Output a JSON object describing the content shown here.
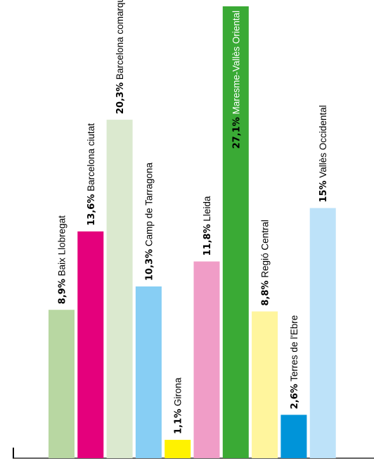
{
  "chart_data": {
    "type": "bar",
    "title": "",
    "xlabel": "",
    "ylabel": "",
    "ylim": [
      0,
      27.1
    ],
    "grid": false,
    "legend": "none",
    "label_orientation": "vertical",
    "categories": [
      "Baix Llobregat",
      "Barcelona ciutat",
      "Barcelona comarques",
      "Camp de Tarragona",
      "Girona",
      "Lleida",
      "Maresme-Vallès Oriental",
      "Regió Central",
      "Terres de l'Ebre",
      "Vallès Occidental"
    ],
    "values": [
      8.9,
      13.6,
      20.3,
      10.3,
      1.1,
      11.8,
      27.1,
      8.8,
      2.6,
      15
    ],
    "value_labels": [
      "8,9%",
      "13,6%",
      "20,3%",
      "10,3%",
      "1,1%",
      "11,8%",
      "27,1%",
      "8,8%",
      "2,6%",
      "15%"
    ],
    "colors": [
      "#b8d7a2",
      "#e4007c",
      "#dbe9cf",
      "#87cef4",
      "#fff200",
      "#f09dc7",
      "#3aaa35",
      "#fff59d",
      "#0094d9",
      "#bde2f9"
    ]
  }
}
